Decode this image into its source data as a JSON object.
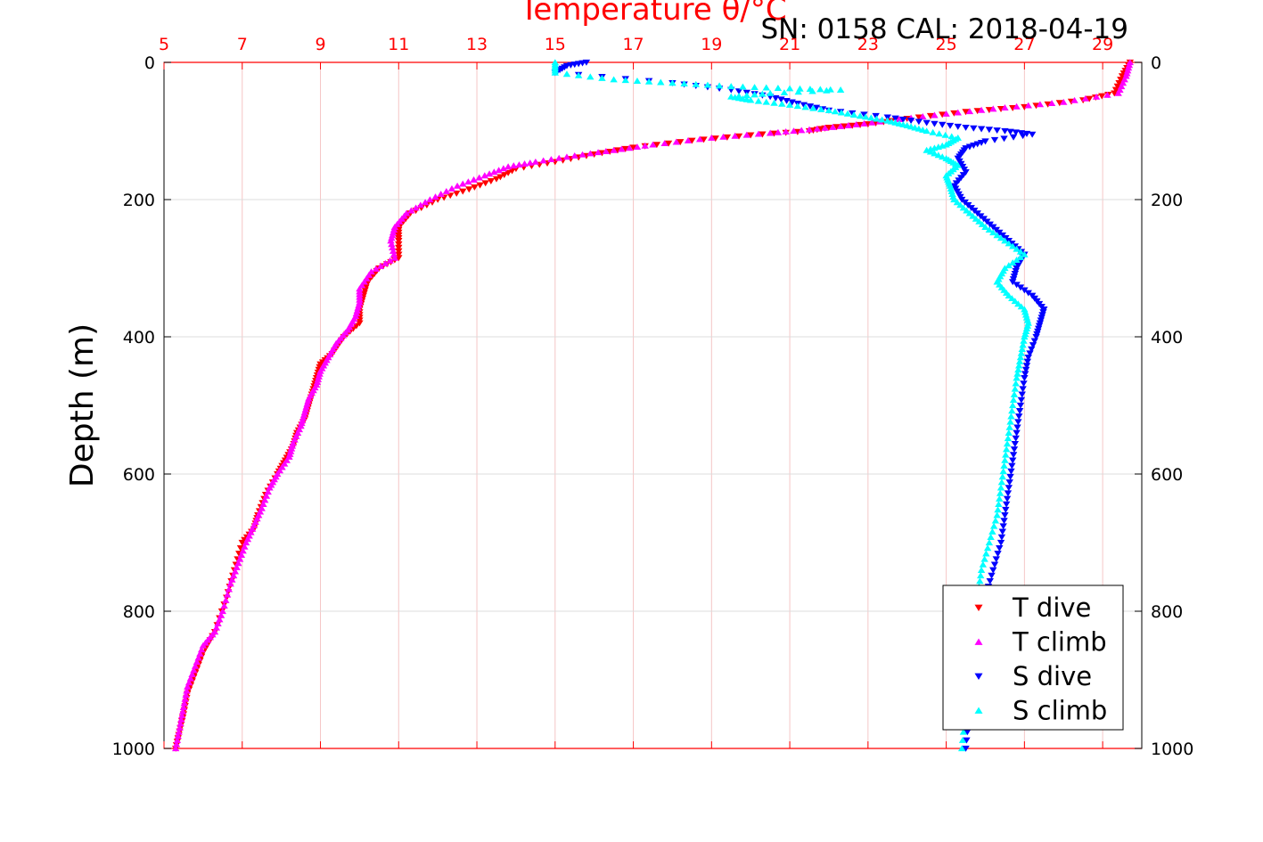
{
  "chart_data": {
    "type": "scatter",
    "title": "Temperature θ/°C",
    "subtitle": "SN: 0158  CAL: 2018-04-19",
    "xlabel": "Temperature θ/°C",
    "ylabel": "Depth (m)",
    "xlim": [
      5,
      30
    ],
    "ylim": [
      0,
      1000
    ],
    "y_reversed": true,
    "x_axis_position": "top",
    "x_ticks": [
      "5",
      "7",
      "9",
      "11",
      "13",
      "15",
      "17",
      "19",
      "21",
      "23",
      "25",
      "27",
      "29"
    ],
    "y_ticks": [
      "0",
      "200",
      "400",
      "600",
      "800",
      "1000"
    ],
    "grid": true,
    "legend_position": "bottom-right",
    "series": [
      {
        "name": "T dive",
        "marker": "triangle-down",
        "color": "#ff0000",
        "points": [
          [
            29.7,
            0
          ],
          [
            29.5,
            20
          ],
          [
            29.3,
            45
          ],
          [
            28.5,
            55
          ],
          [
            27.0,
            65
          ],
          [
            25.5,
            72
          ],
          [
            24.0,
            82
          ],
          [
            23.0,
            90
          ],
          [
            22.0,
            95
          ],
          [
            21.5,
            100
          ],
          [
            20.0,
            106
          ],
          [
            18.5,
            114
          ],
          [
            17.0,
            124
          ],
          [
            16.0,
            134
          ],
          [
            15.0,
            145
          ],
          [
            14.0,
            155
          ],
          [
            13.5,
            170
          ],
          [
            12.8,
            185
          ],
          [
            12.0,
            200
          ],
          [
            11.3,
            220
          ],
          [
            11.0,
            240
          ],
          [
            11.0,
            260
          ],
          [
            11.0,
            285
          ],
          [
            10.5,
            300
          ],
          [
            10.2,
            320
          ],
          [
            10.1,
            340
          ],
          [
            10.0,
            360
          ],
          [
            10.0,
            380
          ],
          [
            9.6,
            400
          ],
          [
            9.3,
            425
          ],
          [
            9.0,
            440
          ],
          [
            8.9,
            460
          ],
          [
            8.8,
            480
          ],
          [
            8.7,
            500
          ],
          [
            8.6,
            520
          ],
          [
            8.4,
            540
          ],
          [
            8.3,
            560
          ],
          [
            8.1,
            580
          ],
          [
            7.9,
            600
          ],
          [
            7.6,
            630
          ],
          [
            7.4,
            660
          ],
          [
            7.3,
            680
          ],
          [
            7.0,
            700
          ],
          [
            6.8,
            740
          ],
          [
            6.6,
            780
          ],
          [
            6.3,
            830
          ],
          [
            6.0,
            860
          ],
          [
            5.8,
            890
          ],
          [
            5.6,
            920
          ],
          [
            5.5,
            950
          ],
          [
            5.4,
            975
          ],
          [
            5.3,
            1000
          ]
        ]
      },
      {
        "name": "T climb",
        "marker": "triangle-up",
        "color": "#ff00ff",
        "points": [
          [
            29.7,
            0
          ],
          [
            29.6,
            20
          ],
          [
            29.4,
            45
          ],
          [
            28.0,
            58
          ],
          [
            26.5,
            66
          ],
          [
            25.0,
            75
          ],
          [
            23.5,
            85
          ],
          [
            22.5,
            92
          ],
          [
            21.5,
            98
          ],
          [
            20.5,
            103
          ],
          [
            19.0,
            110
          ],
          [
            17.5,
            120
          ],
          [
            16.5,
            128
          ],
          [
            15.5,
            136
          ],
          [
            14.5,
            145
          ],
          [
            13.8,
            152
          ],
          [
            13.2,
            165
          ],
          [
            12.5,
            180
          ],
          [
            11.8,
            200
          ],
          [
            11.2,
            220
          ],
          [
            10.9,
            240
          ],
          [
            10.8,
            260
          ],
          [
            10.9,
            285
          ],
          [
            10.3,
            305
          ],
          [
            10.0,
            330
          ],
          [
            10.0,
            350
          ],
          [
            9.9,
            370
          ],
          [
            9.7,
            390
          ],
          [
            9.4,
            410
          ],
          [
            9.2,
            430
          ],
          [
            9.0,
            450
          ],
          [
            8.9,
            470
          ],
          [
            8.7,
            490
          ],
          [
            8.6,
            510
          ],
          [
            8.5,
            530
          ],
          [
            8.3,
            555
          ],
          [
            8.2,
            575
          ],
          [
            7.9,
            600
          ],
          [
            7.7,
            620
          ],
          [
            7.5,
            650
          ],
          [
            7.3,
            675
          ],
          [
            7.1,
            700
          ],
          [
            6.9,
            730
          ],
          [
            6.7,
            760
          ],
          [
            6.5,
            800
          ],
          [
            6.3,
            830
          ],
          [
            6.0,
            850
          ],
          [
            5.8,
            880
          ],
          [
            5.6,
            910
          ],
          [
            5.5,
            940
          ],
          [
            5.4,
            970
          ],
          [
            5.3,
            1000
          ]
        ]
      },
      {
        "name": "S dive",
        "marker": "triangle-down",
        "color": "#0000ff",
        "points": [
          [
            15.8,
            0
          ],
          [
            15.3,
            5
          ],
          [
            15.0,
            15
          ],
          [
            18.0,
            30
          ],
          [
            19.5,
            40
          ],
          [
            20.5,
            50
          ],
          [
            21.2,
            60
          ],
          [
            22.0,
            70
          ],
          [
            23.5,
            80
          ],
          [
            24.5,
            88
          ],
          [
            25.5,
            95
          ],
          [
            26.5,
            100
          ],
          [
            27.2,
            105
          ],
          [
            26.0,
            115
          ],
          [
            25.5,
            125
          ],
          [
            25.3,
            140
          ],
          [
            25.5,
            160
          ],
          [
            25.2,
            180
          ],
          [
            25.4,
            200
          ],
          [
            25.8,
            220
          ],
          [
            26.2,
            240
          ],
          [
            26.6,
            260
          ],
          [
            27.0,
            280
          ],
          [
            26.8,
            300
          ],
          [
            26.7,
            320
          ],
          [
            27.2,
            340
          ],
          [
            27.5,
            360
          ],
          [
            27.4,
            380
          ],
          [
            27.3,
            400
          ],
          [
            27.1,
            430
          ],
          [
            27.0,
            460
          ],
          [
            26.9,
            500
          ],
          [
            26.8,
            540
          ],
          [
            26.7,
            580
          ],
          [
            26.6,
            620
          ],
          [
            26.5,
            660
          ],
          [
            26.4,
            700
          ],
          [
            26.2,
            740
          ],
          [
            26.0,
            780
          ],
          [
            25.9,
            820
          ],
          [
            25.8,
            860
          ],
          [
            25.7,
            900
          ],
          [
            25.6,
            940
          ],
          [
            25.5,
            1000
          ]
        ]
      },
      {
        "name": "S climb",
        "marker": "triangle-up",
        "color": "#00ffff",
        "points": [
          [
            15.0,
            0
          ],
          [
            15.0,
            15
          ],
          [
            16.5,
            25
          ],
          [
            18.0,
            30
          ],
          [
            19.5,
            35
          ],
          [
            21.0,
            38
          ],
          [
            22.3,
            40
          ],
          [
            20.5,
            45
          ],
          [
            19.5,
            50
          ],
          [
            20.0,
            55
          ],
          [
            21.0,
            62
          ],
          [
            22.0,
            70
          ],
          [
            22.8,
            78
          ],
          [
            23.5,
            85
          ],
          [
            24.0,
            92
          ],
          [
            24.5,
            100
          ],
          [
            25.3,
            110
          ],
          [
            25.0,
            120
          ],
          [
            24.5,
            128
          ],
          [
            25.0,
            140
          ],
          [
            25.3,
            150
          ],
          [
            25.0,
            165
          ],
          [
            25.1,
            180
          ],
          [
            25.2,
            200
          ],
          [
            25.6,
            220
          ],
          [
            26.0,
            240
          ],
          [
            26.5,
            260
          ],
          [
            27.0,
            280
          ],
          [
            26.5,
            300
          ],
          [
            26.3,
            320
          ],
          [
            26.6,
            340
          ],
          [
            27.0,
            360
          ],
          [
            27.1,
            380
          ],
          [
            27.0,
            400
          ],
          [
            26.9,
            430
          ],
          [
            26.8,
            460
          ],
          [
            26.7,
            500
          ],
          [
            26.6,
            540
          ],
          [
            26.5,
            580
          ],
          [
            26.4,
            620
          ],
          [
            26.3,
            660
          ],
          [
            26.1,
            700
          ],
          [
            25.9,
            740
          ],
          [
            25.8,
            780
          ],
          [
            25.7,
            820
          ],
          [
            25.6,
            860
          ],
          [
            25.5,
            900
          ],
          [
            25.5,
            940
          ],
          [
            25.4,
            1000
          ]
        ]
      }
    ]
  }
}
